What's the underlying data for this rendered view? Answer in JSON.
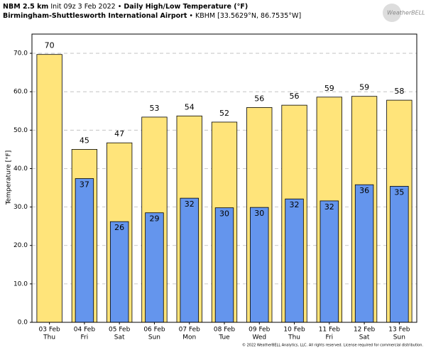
{
  "header": {
    "model": "NBM 2.5 km",
    "init": "Init 09z 3 Feb 2022 •",
    "product": "Daily High/Low Temperature (°F)",
    "station": "Birmingham-Shuttlesworth International Airport",
    "location": "• KBHM [33.5629°N, 86.7535°W]",
    "logo": "WeatherBELL"
  },
  "footer": "© 2022 WeatherBELL Analytics, LLC. All rights reserved. License required for commercial distribution.",
  "chart_data": {
    "type": "bar",
    "y_label": "Temperature [°F]",
    "categories": [
      "03 Feb",
      "04 Feb",
      "05 Feb",
      "06 Feb",
      "07 Feb",
      "08 Feb",
      "09 Feb",
      "10 Feb",
      "11 Feb",
      "12 Feb",
      "13 Feb"
    ],
    "weekdays": [
      "Thu",
      "Fri",
      "Sat",
      "Sun",
      "Mon",
      "Tue",
      "Wed",
      "Thu",
      "Fri",
      "Sat",
      "Sun"
    ],
    "series": [
      {
        "name": "High",
        "color": "#ffe47a",
        "values": [
          69.7,
          45.0,
          46.7,
          53.4,
          53.7,
          52.1,
          55.9,
          56.5,
          58.6,
          58.8,
          57.8
        ],
        "value_labels": [
          "70",
          "45",
          "47",
          "53",
          "54",
          "52",
          "56",
          "56",
          "59",
          "59",
          "58"
        ]
      },
      {
        "name": "Low",
        "color": "#6495ed",
        "values": [
          null,
          37.4,
          26.2,
          28.5,
          32.3,
          29.8,
          29.9,
          32.1,
          31.6,
          35.8,
          35.4
        ],
        "value_labels": [
          null,
          "37",
          "26",
          "29",
          "32",
          "30",
          "30",
          "32",
          "32",
          "36",
          "35"
        ]
      }
    ],
    "ylim": [
      0,
      75
    ],
    "yticks": [
      {
        "value": 0,
        "label": "0.0"
      },
      {
        "value": 10,
        "label": "10.0"
      },
      {
        "value": 20,
        "label": "20.0"
      },
      {
        "value": 30,
        "label": "30.0"
      },
      {
        "value": 40,
        "label": "40.0"
      },
      {
        "value": 50,
        "label": "50.0"
      },
      {
        "value": 60,
        "label": "60.0"
      },
      {
        "value": 70,
        "label": "70.0"
      }
    ],
    "grid": true
  }
}
